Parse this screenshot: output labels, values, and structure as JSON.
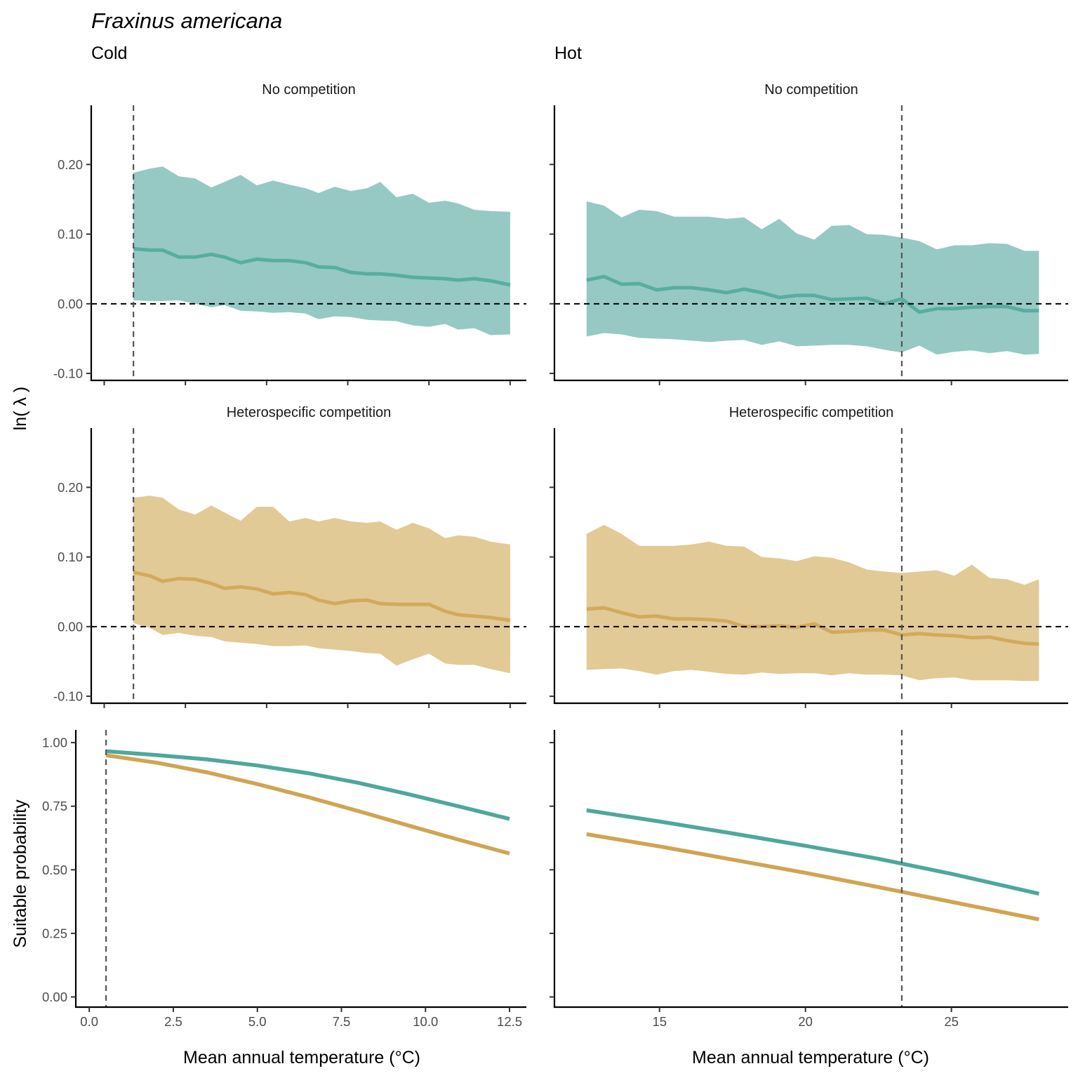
{
  "title": "Fraxinus americana",
  "columns": [
    "Cold",
    "Hot"
  ],
  "strips": [
    "No competition",
    "Heterospecific competition"
  ],
  "ylabel_top": "ln( λ )",
  "ylabel_bottom": "Suitable probability",
  "xlabel": "Mean annual temperature (°C)",
  "colors": {
    "none": "#4da89b",
    "hetero": "#cfa552",
    "none_ribbon": "#96c9c3",
    "hetero_ribbon": "#e2ca96"
  },
  "chart_data": [
    {
      "type": "area",
      "panel": "cold-no-competition",
      "column": "Cold",
      "strip": "No competition",
      "ylim": [
        -0.11,
        0.285
      ],
      "yticks": [
        -0.1,
        0.0,
        0.1,
        0.2
      ],
      "ytick_labels": [
        "-0.10",
        "0.00",
        "0.10",
        "0.20"
      ],
      "xlim": [
        -0.4,
        13.0
      ],
      "xticks": [
        0.0,
        2.5,
        5.0,
        7.5,
        10.0,
        12.5
      ],
      "vline": 0.9,
      "hline": 0,
      "x": [
        0.9,
        1.4,
        1.8,
        2.3,
        2.8,
        3.3,
        3.7,
        4.2,
        4.7,
        5.2,
        5.7,
        6.2,
        6.6,
        7.1,
        7.6,
        8.1,
        8.5,
        9.0,
        9.5,
        10.0,
        10.5,
        10.9,
        11.4,
        11.9,
        12.5
      ],
      "mean": [
        0.079,
        0.077,
        0.077,
        0.067,
        0.067,
        0.071,
        0.067,
        0.059,
        0.064,
        0.062,
        0.062,
        0.059,
        0.053,
        0.052,
        0.045,
        0.043,
        0.043,
        0.041,
        0.038,
        0.037,
        0.036,
        0.034,
        0.036,
        0.033,
        0.027
      ],
      "upper": [
        0.188,
        0.194,
        0.197,
        0.183,
        0.18,
        0.167,
        0.175,
        0.185,
        0.17,
        0.177,
        0.171,
        0.166,
        0.159,
        0.168,
        0.162,
        0.166,
        0.175,
        0.153,
        0.158,
        0.145,
        0.148,
        0.144,
        0.135,
        0.133,
        0.132
      ],
      "lower": [
        0.005,
        0.004,
        0.004,
        0.005,
        0.0,
        -0.005,
        -0.002,
        -0.01,
        -0.011,
        -0.013,
        -0.012,
        -0.014,
        -0.022,
        -0.018,
        -0.019,
        -0.023,
        -0.024,
        -0.025,
        -0.031,
        -0.033,
        -0.029,
        -0.037,
        -0.035,
        -0.045,
        -0.044
      ]
    },
    {
      "type": "area",
      "panel": "hot-no-competition",
      "column": "Hot",
      "strip": "No competition",
      "ylim": [
        -0.11,
        0.285
      ],
      "yticks": [
        -0.1,
        0.0,
        0.1,
        0.2
      ],
      "ytick_labels": [
        "-0.10",
        "0.00",
        "0.10",
        "0.20"
      ],
      "xlim": [
        11.4,
        29.0
      ],
      "xticks": [
        15,
        20,
        25
      ],
      "vline": 23.3,
      "hline": 0,
      "x": [
        12.5,
        13.1,
        13.7,
        14.3,
        14.9,
        15.5,
        16.1,
        16.7,
        17.3,
        17.9,
        18.5,
        19.1,
        19.7,
        20.3,
        20.9,
        21.5,
        22.1,
        22.7,
        23.3,
        23.9,
        24.5,
        25.1,
        25.7,
        26.3,
        26.9,
        27.5,
        28.0
      ],
      "mean": [
        0.034,
        0.039,
        0.028,
        0.029,
        0.02,
        0.023,
        0.023,
        0.02,
        0.016,
        0.021,
        0.016,
        0.009,
        0.012,
        0.012,
        0.006,
        0.007,
        0.008,
        0.0,
        0.007,
        -0.012,
        -0.007,
        -0.007,
        -0.005,
        -0.004,
        -0.004,
        -0.01,
        -0.01
      ],
      "upper": [
        0.147,
        0.141,
        0.124,
        0.135,
        0.133,
        0.125,
        0.125,
        0.125,
        0.122,
        0.124,
        0.107,
        0.122,
        0.101,
        0.092,
        0.112,
        0.113,
        0.1,
        0.099,
        0.095,
        0.09,
        0.078,
        0.084,
        0.084,
        0.087,
        0.086,
        0.076,
        0.076
      ],
      "lower": [
        -0.047,
        -0.042,
        -0.044,
        -0.049,
        -0.05,
        -0.051,
        -0.053,
        -0.055,
        -0.053,
        -0.052,
        -0.059,
        -0.054,
        -0.061,
        -0.06,
        -0.059,
        -0.059,
        -0.061,
        -0.066,
        -0.07,
        -0.06,
        -0.073,
        -0.069,
        -0.067,
        -0.071,
        -0.068,
        -0.073,
        -0.072
      ]
    },
    {
      "type": "area",
      "panel": "cold-heterospecific",
      "column": "Cold",
      "strip": "Heterospecific competition",
      "ylim": [
        -0.11,
        0.285
      ],
      "yticks": [
        -0.1,
        0.0,
        0.1,
        0.2
      ],
      "ytick_labels": [
        "-0.10",
        "0.00",
        "0.10",
        "0.20"
      ],
      "xlim": [
        -0.4,
        13.0
      ],
      "xticks": [
        0.0,
        2.5,
        5.0,
        7.5,
        10.0,
        12.5
      ],
      "vline": 0.9,
      "hline": 0,
      "x": [
        0.9,
        1.4,
        1.8,
        2.3,
        2.8,
        3.3,
        3.7,
        4.2,
        4.7,
        5.2,
        5.7,
        6.2,
        6.6,
        7.1,
        7.6,
        8.1,
        8.5,
        9.0,
        9.5,
        10.0,
        10.5,
        10.9,
        11.4,
        11.9,
        12.5
      ],
      "mean": [
        0.078,
        0.073,
        0.065,
        0.069,
        0.068,
        0.062,
        0.055,
        0.057,
        0.054,
        0.047,
        0.049,
        0.046,
        0.038,
        0.033,
        0.037,
        0.038,
        0.033,
        0.032,
        0.032,
        0.032,
        0.022,
        0.017,
        0.015,
        0.013,
        0.009
      ],
      "upper": [
        0.185,
        0.188,
        0.185,
        0.168,
        0.161,
        0.174,
        0.164,
        0.152,
        0.172,
        0.172,
        0.151,
        0.156,
        0.151,
        0.156,
        0.151,
        0.149,
        0.151,
        0.139,
        0.149,
        0.141,
        0.127,
        0.131,
        0.129,
        0.122,
        0.118
      ],
      "lower": [
        0.005,
        -0.002,
        -0.012,
        -0.009,
        -0.013,
        -0.015,
        -0.021,
        -0.023,
        -0.025,
        -0.028,
        -0.028,
        -0.027,
        -0.031,
        -0.033,
        -0.035,
        -0.038,
        -0.039,
        -0.056,
        -0.047,
        -0.039,
        -0.053,
        -0.055,
        -0.055,
        -0.061,
        -0.067
      ]
    },
    {
      "type": "area",
      "panel": "hot-heterospecific",
      "column": "Hot",
      "strip": "Heterospecific competition",
      "ylim": [
        -0.11,
        0.285
      ],
      "yticks": [
        -0.1,
        0.0,
        0.1,
        0.2
      ],
      "ytick_labels": [
        "-0.10",
        "0.00",
        "0.10",
        "0.20"
      ],
      "xlim": [
        11.4,
        29.0
      ],
      "xticks": [
        15,
        20,
        25
      ],
      "vline": 23.3,
      "hline": 0,
      "x": [
        12.5,
        13.1,
        13.7,
        14.3,
        14.9,
        15.5,
        16.1,
        16.7,
        17.3,
        17.9,
        18.5,
        19.1,
        19.7,
        20.3,
        20.9,
        21.5,
        22.1,
        22.7,
        23.3,
        23.9,
        24.5,
        25.1,
        25.7,
        26.3,
        26.9,
        27.5,
        28.0
      ],
      "mean": [
        0.025,
        0.027,
        0.02,
        0.014,
        0.015,
        0.011,
        0.011,
        0.01,
        0.008,
        0.0,
        0.0,
        0.001,
        -0.001,
        0.004,
        -0.008,
        -0.007,
        -0.005,
        -0.005,
        -0.012,
        -0.01,
        -0.012,
        -0.013,
        -0.016,
        -0.015,
        -0.02,
        -0.024,
        -0.025
      ],
      "upper": [
        0.133,
        0.146,
        0.133,
        0.116,
        0.116,
        0.116,
        0.118,
        0.122,
        0.116,
        0.115,
        0.1,
        0.098,
        0.094,
        0.101,
        0.099,
        0.092,
        0.082,
        0.079,
        0.077,
        0.079,
        0.081,
        0.073,
        0.089,
        0.07,
        0.068,
        0.06,
        0.068
      ],
      "lower": [
        -0.062,
        -0.061,
        -0.06,
        -0.064,
        -0.069,
        -0.064,
        -0.062,
        -0.065,
        -0.068,
        -0.069,
        -0.066,
        -0.068,
        -0.067,
        -0.067,
        -0.07,
        -0.067,
        -0.069,
        -0.069,
        -0.07,
        -0.077,
        -0.074,
        -0.073,
        -0.077,
        -0.077,
        -0.077,
        -0.078,
        -0.078
      ]
    },
    {
      "type": "line",
      "panel": "cold-suitability",
      "column": "Cold",
      "ylim": [
        -0.04,
        1.05
      ],
      "yticks": [
        0.0,
        0.25,
        0.5,
        0.75,
        1.0
      ],
      "ytick_labels": [
        "0.00",
        "0.25",
        "0.50",
        "0.75",
        "1.00"
      ],
      "xlim": [
        -0.4,
        13.0
      ],
      "xticks": [
        0.0,
        2.5,
        5.0,
        7.5,
        10.0,
        12.5
      ],
      "xtick_labels": [
        "0.0",
        "2.5",
        "5.0",
        "7.5",
        "10.0",
        "12.5"
      ],
      "vline": 0.5,
      "x": [
        0.5,
        2.0,
        3.5,
        5.0,
        6.5,
        8.0,
        9.5,
        11.0,
        12.5
      ],
      "series": [
        {
          "key": "none",
          "values": [
            0.966,
            0.951,
            0.934,
            0.91,
            0.88,
            0.842,
            0.797,
            0.749,
            0.7
          ]
        },
        {
          "key": "hetero",
          "values": [
            0.95,
            0.921,
            0.883,
            0.837,
            0.786,
            0.731,
            0.674,
            0.618,
            0.564
          ]
        }
      ]
    },
    {
      "type": "line",
      "panel": "hot-suitability",
      "column": "Hot",
      "ylim": [
        -0.04,
        1.05
      ],
      "yticks": [
        0.0,
        0.25,
        0.5,
        0.75,
        1.0
      ],
      "ytick_labels": [
        "0.00",
        "0.25",
        "0.50",
        "0.75",
        "1.00"
      ],
      "xlim": [
        11.4,
        29.0
      ],
      "xticks": [
        15,
        20,
        25
      ],
      "xtick_labels": [
        "15",
        "20",
        "25"
      ],
      "vline": 23.3,
      "x": [
        12.5,
        15.0,
        17.5,
        20.0,
        22.5,
        25.0,
        28.0
      ],
      "series": [
        {
          "key": "none",
          "values": [
            0.734,
            0.69,
            0.643,
            0.594,
            0.543,
            0.484,
            0.406
          ]
        },
        {
          "key": "hetero",
          "values": [
            0.64,
            0.592,
            0.54,
            0.488,
            0.432,
            0.374,
            0.305
          ]
        }
      ]
    }
  ]
}
